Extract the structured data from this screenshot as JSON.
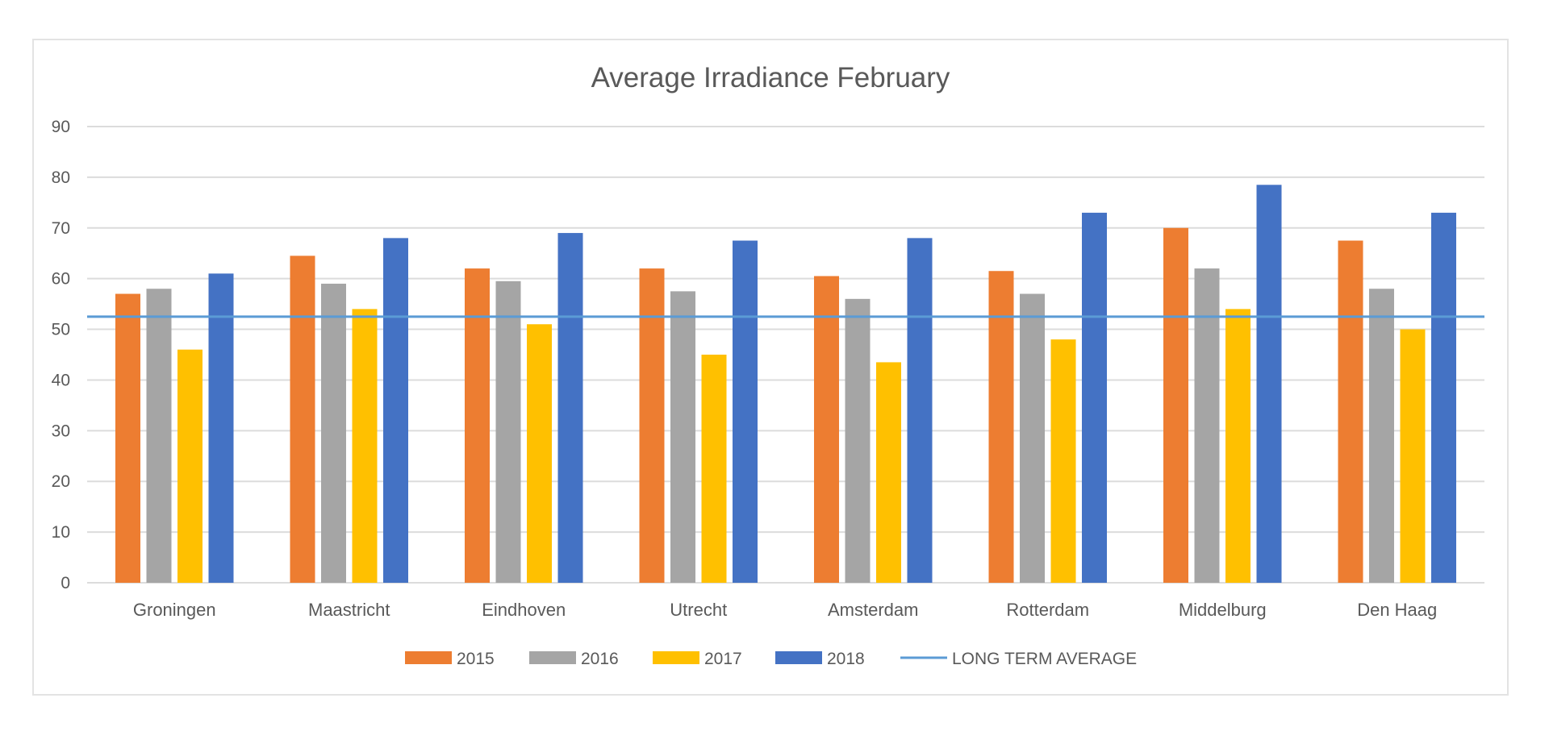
{
  "chart_data": {
    "type": "bar",
    "title": "Average Irradiance February",
    "xlabel": "",
    "ylabel": "",
    "ylim": [
      0,
      90
    ],
    "yticks": [
      0,
      10,
      20,
      30,
      40,
      50,
      60,
      70,
      80,
      90
    ],
    "grid": true,
    "legend_position": "bottom",
    "categories": [
      "Groningen",
      "Maastricht",
      "Eindhoven",
      "Utrecht",
      "Amsterdam",
      "Rotterdam",
      "Middelburg",
      "Den Haag"
    ],
    "series": [
      {
        "name": "2015",
        "color": "#ED7D31",
        "values": [
          57,
          64.5,
          62,
          62,
          60.5,
          61.5,
          70,
          67.5
        ]
      },
      {
        "name": "2016",
        "color": "#A5A5A5",
        "values": [
          58,
          59,
          59.5,
          57.5,
          56,
          57,
          62,
          58
        ]
      },
      {
        "name": "2017",
        "color": "#FFC000",
        "values": [
          46,
          54,
          51,
          45,
          43.5,
          48,
          54,
          50
        ]
      },
      {
        "name": "2018",
        "color": "#4472C4",
        "values": [
          61,
          68,
          69,
          67.5,
          68,
          73,
          78.5,
          73
        ]
      }
    ],
    "reference_line": {
      "name": "LONG TERM AVERAGE",
      "color": "#5B9BD5",
      "value": 52.5
    }
  }
}
